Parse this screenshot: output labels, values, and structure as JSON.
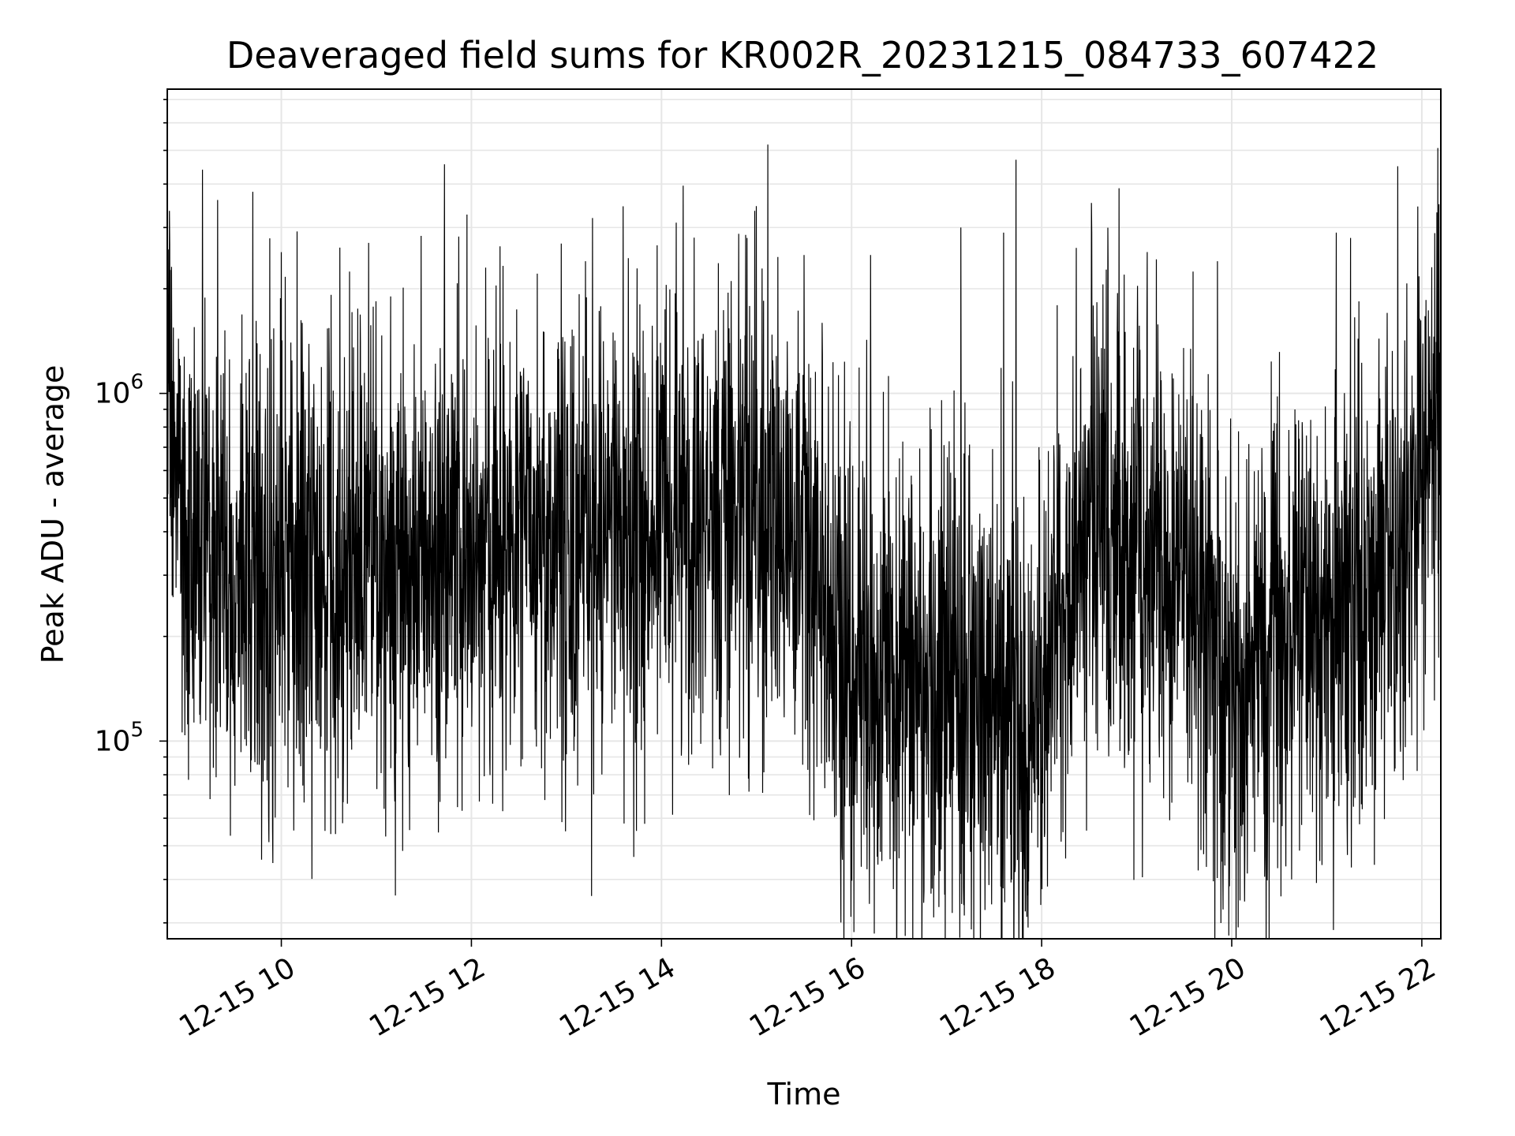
{
  "chart_data": {
    "type": "line",
    "title": "Deaveraged field sums for KR002R_20231215_084733_607422",
    "xlabel": "Time",
    "ylabel": "Peak ADU - average",
    "x_tick_labels": [
      "12-15 10",
      "12-15 12",
      "12-15 14",
      "12-15 16",
      "12-15 18",
      "12-15 20",
      "12-15 22"
    ],
    "x_tick_hours": [
      10,
      12,
      14,
      16,
      18,
      20,
      22
    ],
    "x_range_hours": [
      8.8,
      22.2
    ],
    "y_scale": "log",
    "y_tick_base": "10",
    "y_tick_exponents": [
      "5",
      "6"
    ],
    "ylim": [
      27000,
      7500000
    ],
    "grid": true,
    "line_color": "#000000",
    "grid_color": "#e6e6e6",
    "envelope": {
      "hours": [
        8.8,
        9.0,
        9.5,
        10.0,
        10.5,
        11.0,
        11.5,
        12.0,
        12.5,
        13.0,
        13.5,
        14.0,
        14.5,
        15.0,
        15.5,
        15.8,
        16.0,
        16.5,
        17.0,
        17.5,
        18.0,
        18.3,
        18.7,
        19.0,
        19.5,
        20.0,
        20.5,
        21.0,
        21.5,
        22.0,
        22.2
      ],
      "median": [
        1400000,
        350000,
        320000,
        300000,
        330000,
        350000,
        340000,
        360000,
        380000,
        380000,
        400000,
        420000,
        430000,
        430000,
        450000,
        220000,
        160000,
        150000,
        140000,
        140000,
        130000,
        300000,
        420000,
        380000,
        280000,
        170000,
        180000,
        220000,
        300000,
        500000,
        1000000
      ]
    },
    "spikes": [
      {
        "hour": 9.17,
        "value": 4400000
      },
      {
        "hour": 9.33,
        "value": 3600000
      },
      {
        "hour": 9.7,
        "value": 3800000
      },
      {
        "hour": 10.1,
        "value": 1400000
      },
      {
        "hour": 11.15,
        "value": 1900000
      },
      {
        "hour": 12.15,
        "value": 2300000
      },
      {
        "hour": 13.2,
        "value": 2400000
      },
      {
        "hour": 14.9,
        "value": 2800000
      },
      {
        "hour": 15.5,
        "value": 2500000
      },
      {
        "hour": 16.2,
        "value": 2500000
      },
      {
        "hour": 17.15,
        "value": 3000000
      },
      {
        "hour": 17.6,
        "value": 2900000
      },
      {
        "hour": 17.73,
        "value": 4700000
      },
      {
        "hour": 19.85,
        "value": 2400000
      },
      {
        "hour": 21.1,
        "value": 2900000
      },
      {
        "hour": 21.25,
        "value": 2800000
      },
      {
        "hour": 22.18,
        "value": 3500000
      }
    ],
    "dips": [
      {
        "hour": 10.52,
        "value": 54000
      },
      {
        "hour": 10.57,
        "value": 54000
      },
      {
        "hour": 12.99,
        "value": 55000
      },
      {
        "hour": 16.5,
        "value": 46000
      },
      {
        "hour": 17.72,
        "value": 42000
      },
      {
        "hour": 17.85,
        "value": 36000
      },
      {
        "hour": 19.9,
        "value": 45000
      },
      {
        "hour": 20.63,
        "value": 40000
      },
      {
        "hour": 20.95,
        "value": 44000
      }
    ]
  }
}
